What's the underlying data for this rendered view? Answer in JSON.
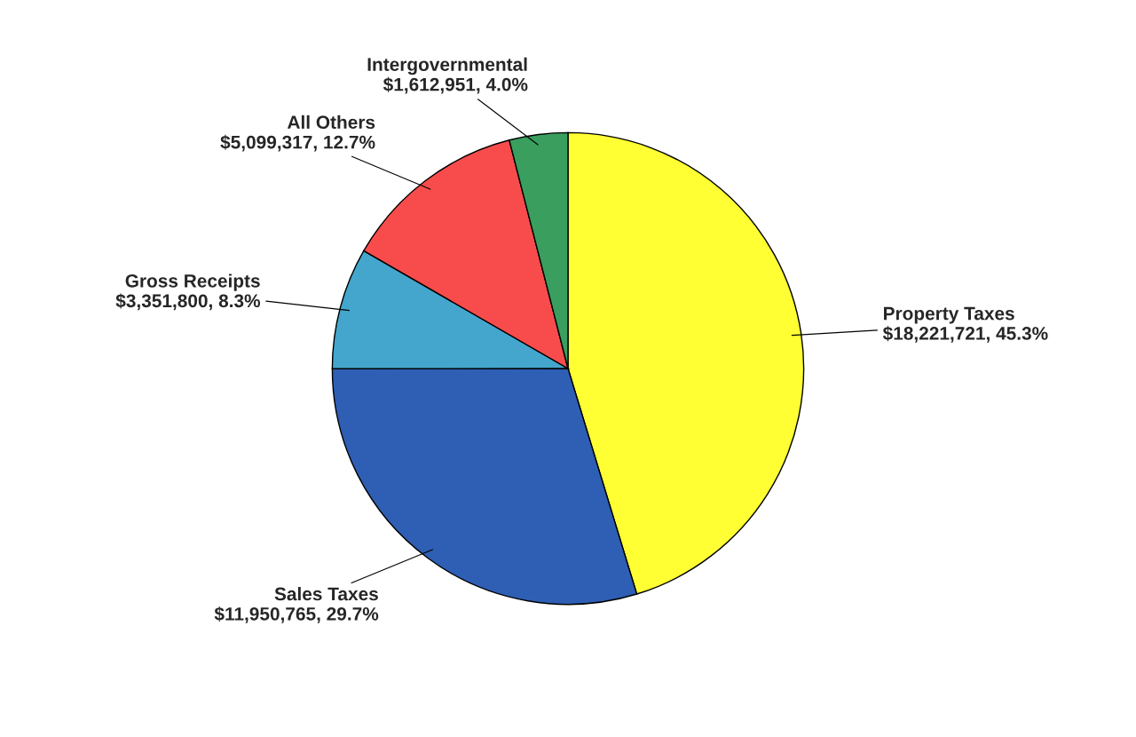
{
  "chart_data": {
    "type": "pie",
    "categories": [
      "Property Taxes",
      "Sales Taxes",
      "Gross Receipts",
      "All Others",
      "Intergovernmental"
    ],
    "values": [
      18221721,
      11950765,
      3351800,
      5099317,
      1612951
    ],
    "value_labels": [
      "$18,221,721, 45.3%",
      "$11,950,765, 29.7%",
      "$3,351,800, 8.3%",
      "$5,099,317, 12.7%",
      "$1,612,951, 4.0%"
    ],
    "colors": [
      "#ffff33",
      "#2e5fb5",
      "#44a6cc",
      "#f84c4c",
      "#3a9e5e"
    ],
    "legend": false
  }
}
